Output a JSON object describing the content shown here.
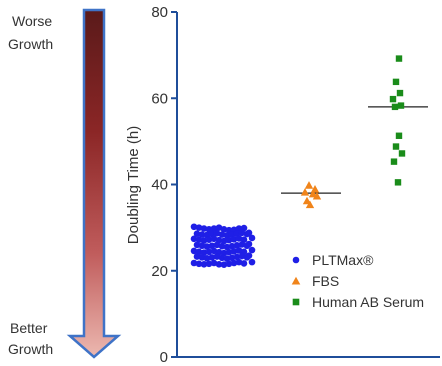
{
  "chart_data": {
    "type": "scatter",
    "ylabel": "Doubling Time (h)",
    "ylim": [
      0,
      80
    ],
    "yticks": [
      0,
      20,
      40,
      60,
      80
    ],
    "grid": false,
    "legend_position": "bottom-right",
    "annotations": {
      "arrow_top_line1": "Worse",
      "arrow_top_line2": "Growth",
      "arrow_bottom_line1": "Better",
      "arrow_bottom_line2": "Growth"
    },
    "series": [
      {
        "name": "PLTMax®",
        "color": "#1f1fe6",
        "marker": "circle",
        "x_group": 1,
        "values": [
          30.2,
          30.0,
          29.8,
          29.6,
          29.8,
          30.0,
          29.6,
          29.4,
          29.5,
          29.8,
          29.9,
          28.8,
          28.6,
          28.4,
          28.3,
          28.5,
          28.7,
          28.4,
          28.2,
          28.4,
          28.6,
          28.8,
          28.5,
          27.6,
          27.4,
          27.2,
          27.0,
          27.2,
          27.4,
          27.1,
          26.9,
          27.1,
          27.3,
          27.5,
          27.2,
          26.2,
          26.0,
          25.8,
          25.6,
          25.8,
          26.0,
          25.7,
          25.5,
          25.7,
          25.9,
          26.1,
          25.8,
          24.8,
          24.6,
          24.4,
          24.2,
          24.4,
          24.6,
          24.3,
          24.1,
          24.3,
          24.5,
          24.7,
          24.4,
          23.5,
          23.3,
          23.1,
          22.9,
          23.1,
          23.3,
          23.0,
          22.8,
          23.0,
          23.2,
          23.4,
          23.1,
          22.0,
          21.8,
          21.6,
          21.5,
          21.6,
          21.8,
          21.5,
          21.4,
          21.6,
          21.8,
          22.0,
          21.7
        ],
        "median": 26
      },
      {
        "name": "FBS",
        "color": "#f0841a",
        "marker": "triangle",
        "x_group": 2,
        "values": [
          39.8,
          38.9,
          38.2,
          37.8,
          37.3,
          36.2,
          35.3
        ],
        "median": 38
      },
      {
        "name": "Human AB Serum",
        "color": "#1a8c1a",
        "marker": "square",
        "x_group": 3,
        "values": [
          69.2,
          63.8,
          61.2,
          59.8,
          58.3,
          58.0,
          51.3,
          48.8,
          47.2,
          45.3,
          40.5
        ],
        "median": 58
      }
    ]
  }
}
